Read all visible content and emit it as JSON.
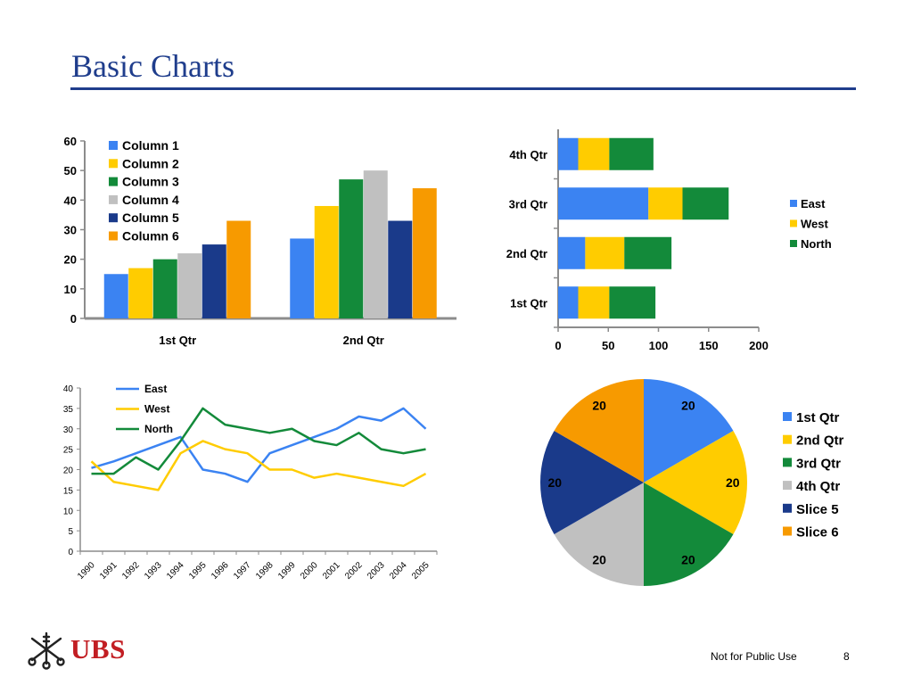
{
  "slide": {
    "title": "Basic Charts",
    "footer_note": "Not for Public Use",
    "page_number": "8",
    "brand": "UBS"
  },
  "colors": {
    "blue": "#3b83f2",
    "yellow": "#ffcc00",
    "green": "#138a3a",
    "grey": "#c0c0c0",
    "navy": "#1a3a8a",
    "orange": "#f79a00",
    "title_blue": "#1f3d8c",
    "brand_red": "#c21e23"
  },
  "chart_data": [
    {
      "type": "bar",
      "orientation": "vertical",
      "categories": [
        "1st Qtr",
        "2nd Qtr"
      ],
      "series": [
        {
          "name": "Column 1",
          "values": [
            15,
            27
          ],
          "color": "#3b83f2"
        },
        {
          "name": "Column 2",
          "values": [
            17,
            38
          ],
          "color": "#ffcc00"
        },
        {
          "name": "Column 3",
          "values": [
            20,
            47
          ],
          "color": "#138a3a"
        },
        {
          "name": "Column 4",
          "values": [
            22,
            50
          ],
          "color": "#c0c0c0"
        },
        {
          "name": "Column 5",
          "values": [
            25,
            33
          ],
          "color": "#1a3a8a"
        },
        {
          "name": "Column 6",
          "values": [
            33,
            44
          ],
          "color": "#f79a00"
        }
      ],
      "ylim": [
        0,
        60
      ],
      "yticks": [
        0,
        10,
        20,
        30,
        40,
        50,
        60
      ],
      "legend": "top-left"
    },
    {
      "type": "bar",
      "orientation": "horizontal",
      "stacked": true,
      "categories": [
        "1st Qtr",
        "2nd Qtr",
        "3rd Qtr",
        "4th Qtr"
      ],
      "series": [
        {
          "name": "East",
          "values": [
            20,
            27,
            90,
            20
          ],
          "color": "#3b83f2"
        },
        {
          "name": "West",
          "values": [
            31,
            39,
            34,
            31
          ],
          "color": "#ffcc00"
        },
        {
          "name": "North",
          "values": [
            46,
            47,
            46,
            44
          ],
          "color": "#138a3a"
        }
      ],
      "xlim": [
        0,
        200
      ],
      "xticks": [
        0,
        50,
        100,
        150,
        200
      ],
      "legend": "right"
    },
    {
      "type": "line",
      "x": [
        "1990",
        "1991",
        "1992",
        "1993",
        "1994",
        "1995",
        "1996",
        "1997",
        "1998",
        "1999",
        "2000",
        "2001",
        "2002",
        "2003",
        "2004",
        "2005"
      ],
      "series": [
        {
          "name": "East",
          "values": [
            20.4,
            22,
            24,
            26,
            28,
            20,
            19,
            17,
            24,
            26,
            28,
            30,
            33,
            32,
            35,
            30
          ],
          "color": "#3b83f2"
        },
        {
          "name": "West",
          "values": [
            22,
            17,
            16,
            15,
            24,
            27,
            25,
            24,
            20,
            20,
            18,
            19,
            18,
            17,
            16,
            19
          ],
          "color": "#ffcc00"
        },
        {
          "name": "North",
          "values": [
            19,
            19,
            23,
            20,
            27,
            35,
            31,
            30,
            29,
            30,
            27,
            26,
            29,
            25,
            24,
            25
          ],
          "color": "#138a3a"
        }
      ],
      "ylim": [
        0,
        40
      ],
      "yticks": [
        0,
        5,
        10,
        15,
        20,
        25,
        30,
        35,
        40
      ],
      "legend": "top-left"
    },
    {
      "type": "pie",
      "slices": [
        {
          "name": "1st Qtr",
          "value": 20,
          "color": "#3b83f2"
        },
        {
          "name": "2nd Qtr",
          "value": 20,
          "color": "#ffcc00"
        },
        {
          "name": "3rd Qtr",
          "value": 20,
          "color": "#138a3a"
        },
        {
          "name": "4th Qtr",
          "value": 20,
          "color": "#c0c0c0"
        },
        {
          "name": "Slice 5",
          "value": 20,
          "color": "#1a3a8a"
        },
        {
          "name": "Slice 6",
          "value": 20,
          "color": "#f79a00"
        }
      ],
      "legend": "right"
    }
  ]
}
